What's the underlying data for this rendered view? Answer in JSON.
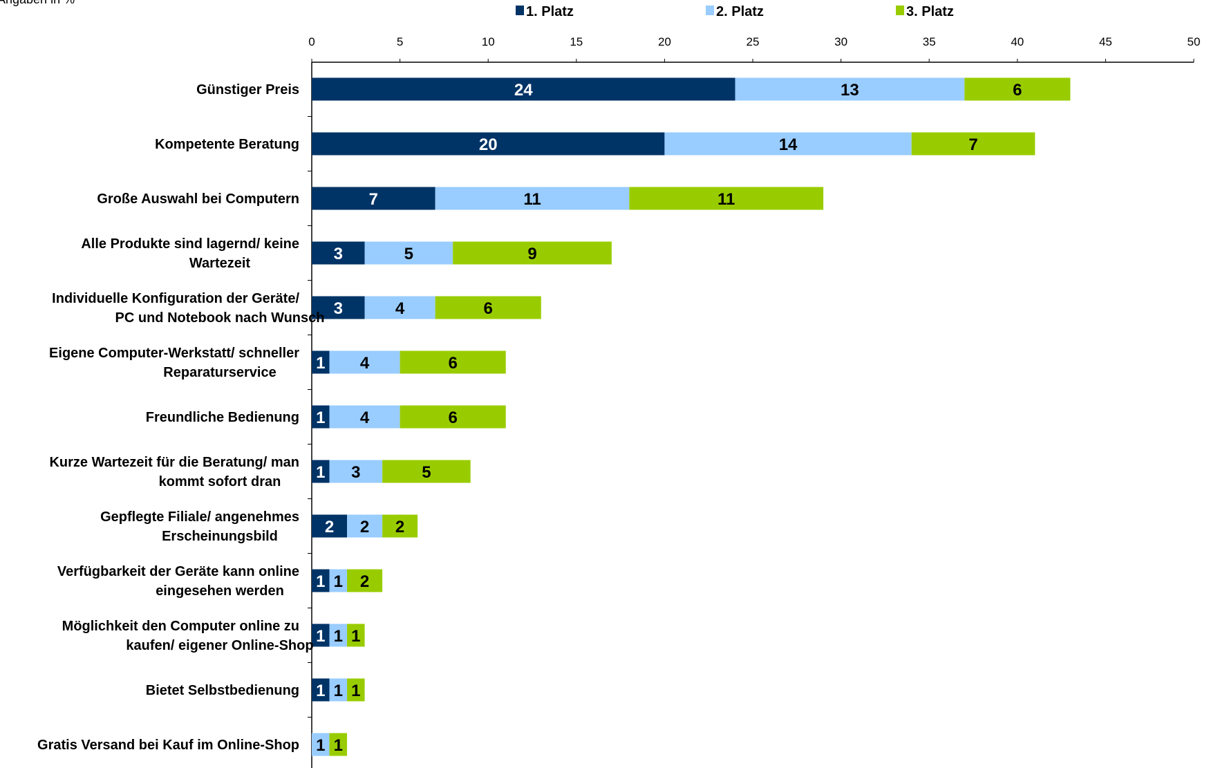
{
  "chart_data": {
    "type": "bar",
    "orientation": "horizontal",
    "stacked": true,
    "unit_note": "Angaben in %",
    "xlim": [
      0,
      50
    ],
    "ticks": [
      0,
      5,
      10,
      15,
      20,
      25,
      30,
      35,
      40,
      45,
      50
    ],
    "grid": false,
    "legend_position": "top",
    "categories": [
      [
        "Günstiger Preis"
      ],
      [
        "Kompetente Beratung"
      ],
      [
        "Große Auswahl bei Computern"
      ],
      [
        "Alle Produkte sind lagernd/ keine",
        "Wartezeit"
      ],
      [
        "Individuelle Konfiguration der Geräte/",
        "PC und Notebook nach Wunsch"
      ],
      [
        "Eigene Computer-Werkstatt/ schneller",
        "Reparaturservice"
      ],
      [
        "Freundliche Bedienung"
      ],
      [
        "Kurze Wartezeit für die Beratung/ man",
        "kommt sofort dran"
      ],
      [
        "Gepflegte Filiale/ angenehmes",
        "Erscheinungsbild"
      ],
      [
        "Verfügbarkeit der Geräte kann online",
        "eingesehen werden"
      ],
      [
        "Möglichkeit den Computer online zu",
        "kaufen/ eigener Online-Shop"
      ],
      [
        "Bietet Selbstbedienung"
      ],
      [
        "Gratis Versand bei Kauf im Online-Shop"
      ]
    ],
    "series": [
      {
        "name": "1. Platz",
        "color": "#003366",
        "label_color": "#ffffff",
        "values": [
          24,
          20,
          7,
          3,
          3,
          1,
          1,
          1,
          2,
          1,
          1,
          1,
          0
        ]
      },
      {
        "name": "2. Platz",
        "color": "#99ccff",
        "label_color": "#000000",
        "values": [
          13,
          14,
          11,
          5,
          4,
          4,
          4,
          3,
          2,
          1,
          1,
          1,
          1
        ]
      },
      {
        "name": "3. Platz",
        "color": "#99cc00",
        "label_color": "#000000",
        "values": [
          6,
          7,
          11,
          9,
          6,
          6,
          6,
          5,
          2,
          2,
          1,
          1,
          1
        ]
      }
    ]
  }
}
